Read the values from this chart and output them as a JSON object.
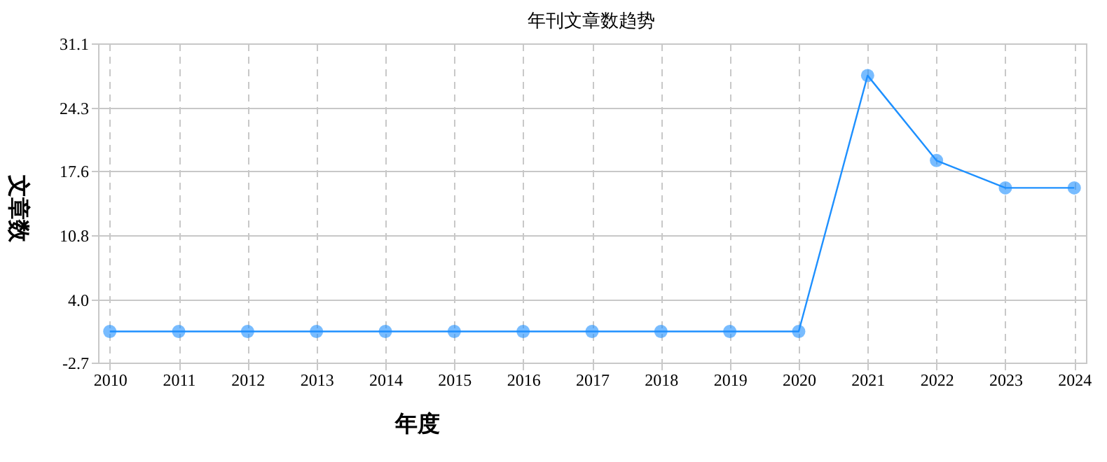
{
  "chart_data": {
    "type": "line",
    "title": "年刊文章数趋势",
    "xlabel": "年度",
    "ylabel": "文章数",
    "categories": [
      "2010",
      "2011",
      "2012",
      "2013",
      "2014",
      "2015",
      "2016",
      "2017",
      "2018",
      "2019",
      "2020",
      "2021",
      "2022",
      "2023",
      "2024"
    ],
    "series": [
      {
        "color": "#1e90ff",
        "values": [
          0.6,
          0.6,
          0.6,
          0.6,
          0.6,
          0.6,
          0.6,
          0.6,
          0.6,
          0.6,
          0.6,
          27.7,
          18.7,
          15.8,
          15.8
        ]
      }
    ],
    "ylim": [
      -2.7,
      31.1
    ],
    "yticks": [
      -2.7,
      {
        "value": 4,
        "label": "4.0"
      },
      10.8,
      17.6,
      24.3,
      31.1
    ],
    "grid": true,
    "marker": "circle",
    "line_style": "solid"
  }
}
